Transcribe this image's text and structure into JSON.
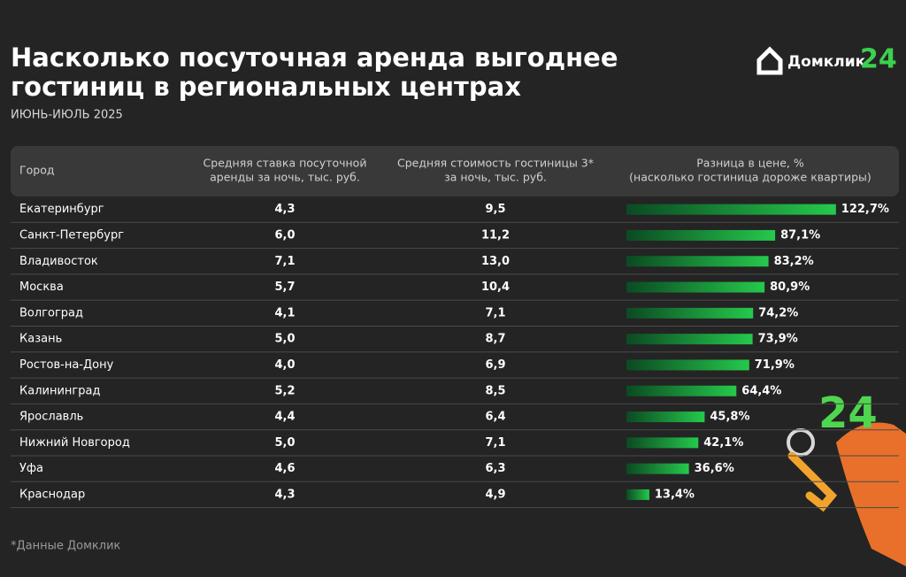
{
  "header": {
    "title_lines": [
      "Насколько посуточная аренда выгоднее",
      "гостиниц в региональных центрах"
    ],
    "subtitle": "ИЮНЬ-ИЮЛЬ 2025"
  },
  "logo": {
    "name": "Домклик",
    "badge": "24"
  },
  "table": {
    "columns": [
      [
        "Город"
      ],
      [
        "Средняя ставка посуточной",
        "аренды за ночь, тыс. руб."
      ],
      [
        "Средняя стоимость гостиницы 3*",
        "за ночь, тыс. руб."
      ],
      [
        "Разница в цене, %",
        "(насколько гостиница дороже квартиры)"
      ]
    ],
    "rows": [
      [
        "Екатеринбург",
        "4,3",
        "9,5"
      ],
      [
        "Санкт-Петербург",
        "6,0",
        "11,2"
      ],
      [
        "Владивосток",
        "7,1",
        "13,0"
      ],
      [
        "Москва",
        "5,7",
        "10,4"
      ],
      [
        "Волгоград",
        "4,1",
        "7,1"
      ],
      [
        "Казань",
        "5,0",
        "8,7"
      ],
      [
        "Ростов-на-Дону",
        "4,0",
        "6,9"
      ],
      [
        "Калининград",
        "5,2",
        "8,5"
      ],
      [
        "Ярославль",
        "4,4",
        "6,4"
      ],
      [
        "Нижний Новгород",
        "5,0",
        "7,1"
      ],
      [
        "Уфа",
        "4,6",
        "6,3"
      ],
      [
        "Краснодар",
        "4,3",
        "4,9"
      ]
    ],
    "diff_values": [
      122.7,
      87.1,
      83.2,
      80.9,
      74.2,
      73.9,
      71.9,
      64.4,
      45.8,
      42.1,
      36.6,
      13.4
    ],
    "diff_labels": [
      "122,7%",
      "87,1%",
      "83,2%",
      "80,9%",
      "74,2%",
      "73,9%",
      "71,9%",
      "64,4%",
      "45,8%",
      "42,1%",
      "36,6%",
      "13,4%"
    ]
  },
  "footnote": "*Данные Домклик"
}
